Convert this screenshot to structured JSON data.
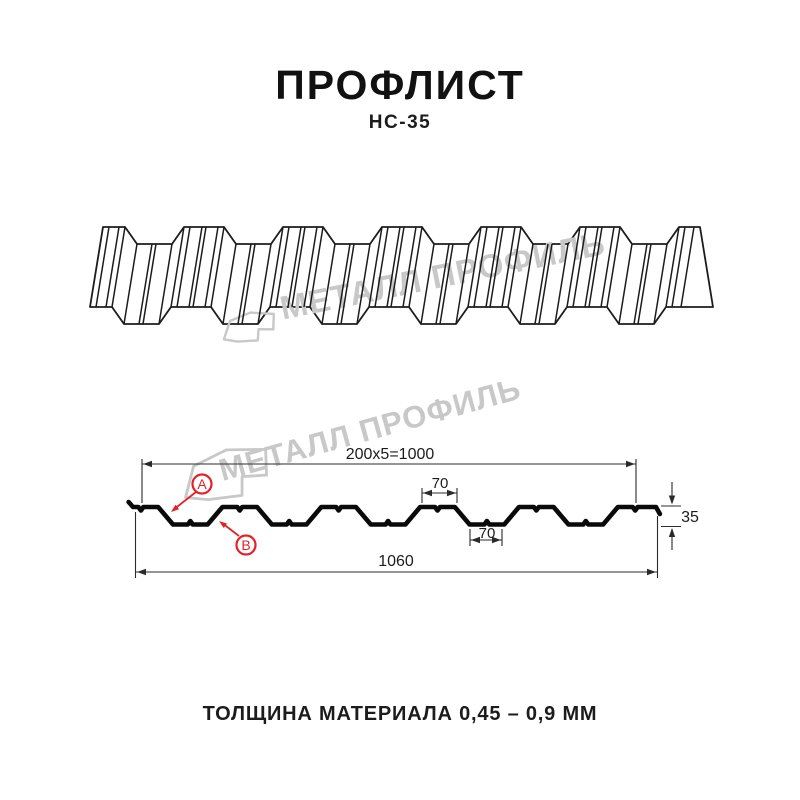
{
  "header": {
    "title": "ПРОФЛИСТ",
    "subtitle": "НС-35"
  },
  "footer": {
    "thickness_note": "ТОЛЩИНА МАТЕРИАЛА 0,45 – 0,9 ММ"
  },
  "watermark": {
    "text": "МЕТАЛЛ ПРОФИЛЬ",
    "color": "#c8c8c8"
  },
  "colors": {
    "background": "#ffffff",
    "line_dark": "#1c1c1c",
    "profile_black": "#0a0a0a",
    "dimension": "#2b2b2b",
    "accent_red": "#e42127",
    "watermark_gray": "#c8c8c8"
  },
  "dimensions": {
    "width_formula": "200x5=1000",
    "top_flat_width": "70",
    "bottom_flat_width": "70",
    "profile_height": "35",
    "total_width": "1060"
  },
  "callouts": {
    "a": "A",
    "b": "B"
  },
  "profile_spec": {
    "name": "НС-35",
    "wave_period_mm": 200,
    "waves_per_sheet": 5,
    "working_width_mm": 1000,
    "overall_width_mm": 1060,
    "rib_height_mm": 35,
    "rib_top_width_mm": 70,
    "rib_bottom_width_mm": 70,
    "thickness_range_mm": "0,45 – 0,9"
  }
}
